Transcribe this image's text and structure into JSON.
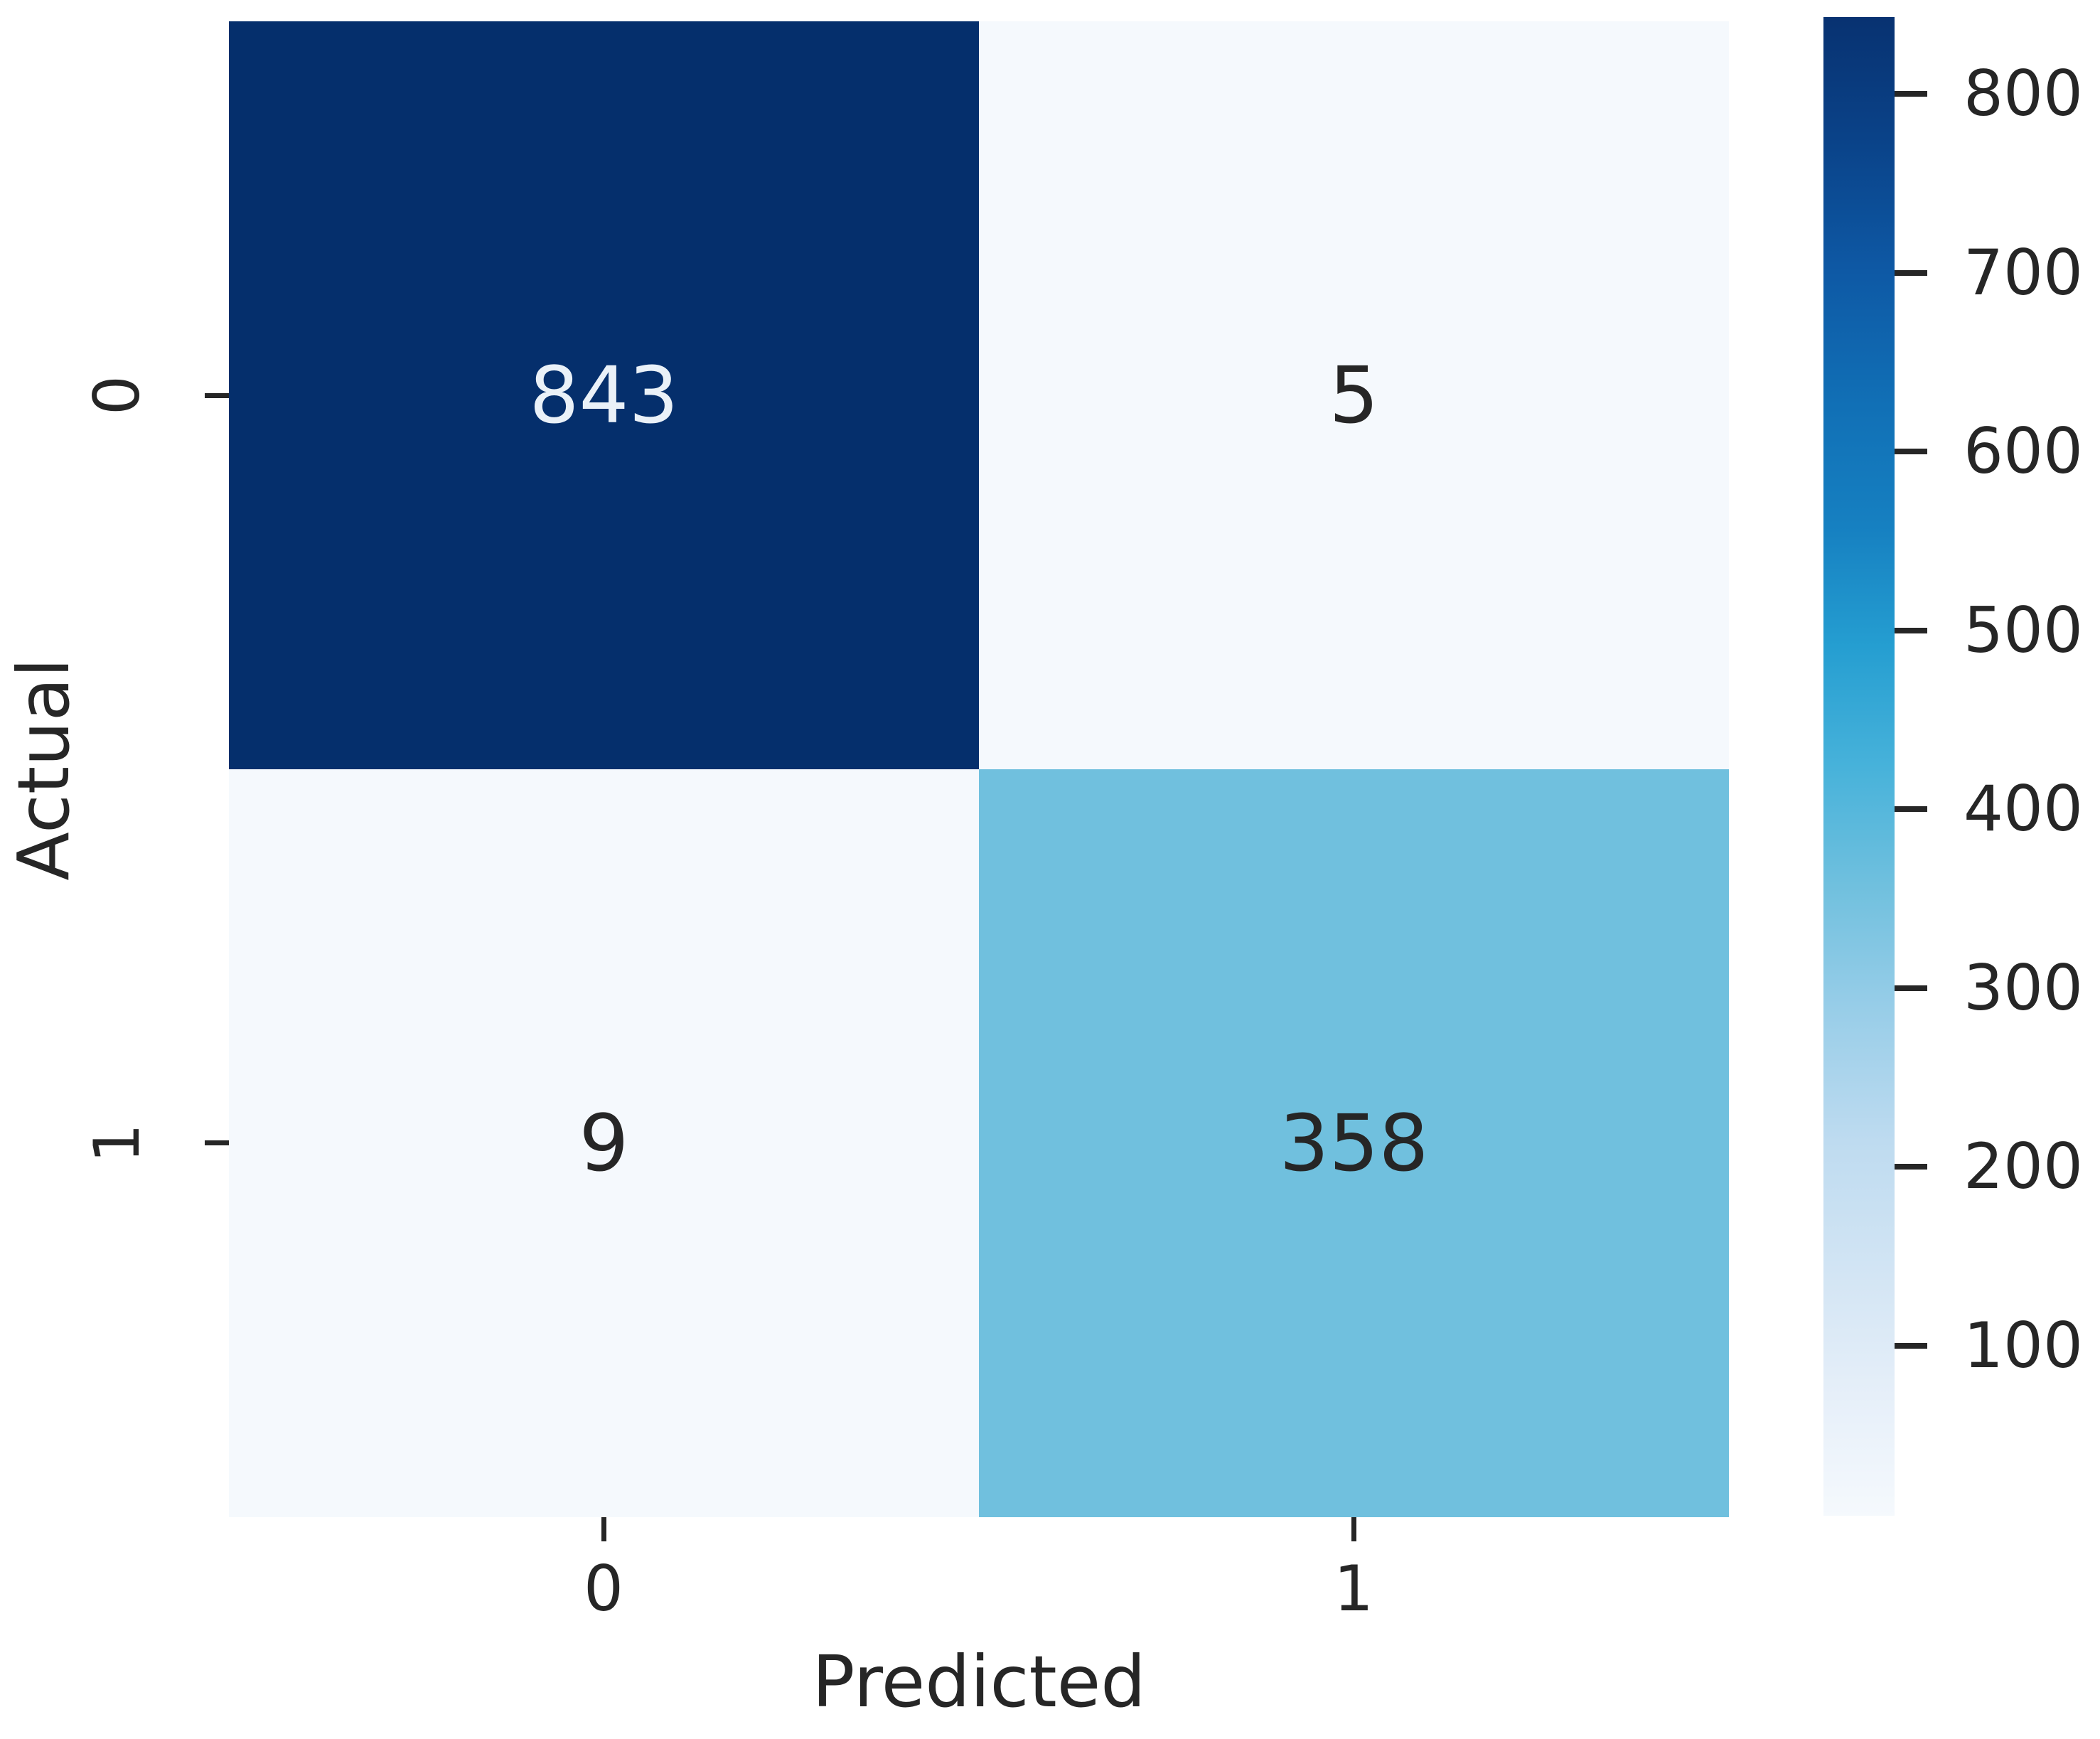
{
  "figure": {
    "background": "#ffffff",
    "text_color": "#262626"
  },
  "chart_data": {
    "type": "heatmap",
    "subtype": "confusion-matrix",
    "title": "",
    "xlabel": "Predicted",
    "ylabel": "Actual",
    "x_tick_labels": [
      "0",
      "1"
    ],
    "y_tick_labels": [
      "0",
      "1"
    ],
    "matrix": [
      [
        843,
        5
      ],
      [
        9,
        358
      ]
    ],
    "vmin": 5,
    "vmax": 843,
    "colormap": "Blues",
    "grid": false,
    "cell_colors": [
      [
        "#052f6c",
        "#f5f9fd"
      ],
      [
        "#f5f9fd",
        "#70c0de"
      ]
    ],
    "cell_text_colors": [
      [
        "#eaf1f8",
        "#262626"
      ],
      [
        "#262626",
        "#262626"
      ]
    ],
    "colorbar": {
      "position": "right",
      "tick_values": [
        100,
        200,
        300,
        400,
        500,
        600,
        700,
        800
      ],
      "gradient_stops": [
        {
          "pos": 0,
          "color": "#083271"
        },
        {
          "pos": 8,
          "color": "#0a4288"
        },
        {
          "pos": 17,
          "color": "#0e59a5"
        },
        {
          "pos": 26,
          "color": "#1170b6"
        },
        {
          "pos": 34,
          "color": "#1680c1"
        },
        {
          "pos": 42,
          "color": "#259ed1"
        },
        {
          "pos": 50,
          "color": "#47b2da"
        },
        {
          "pos": 58,
          "color": "#70c0de"
        },
        {
          "pos": 66,
          "color": "#97cde8"
        },
        {
          "pos": 75,
          "color": "#bedbf0"
        },
        {
          "pos": 84,
          "color": "#d3e5f4"
        },
        {
          "pos": 92,
          "color": "#e6eff9"
        },
        {
          "pos": 100,
          "color": "#f5f9fd"
        }
      ]
    }
  }
}
